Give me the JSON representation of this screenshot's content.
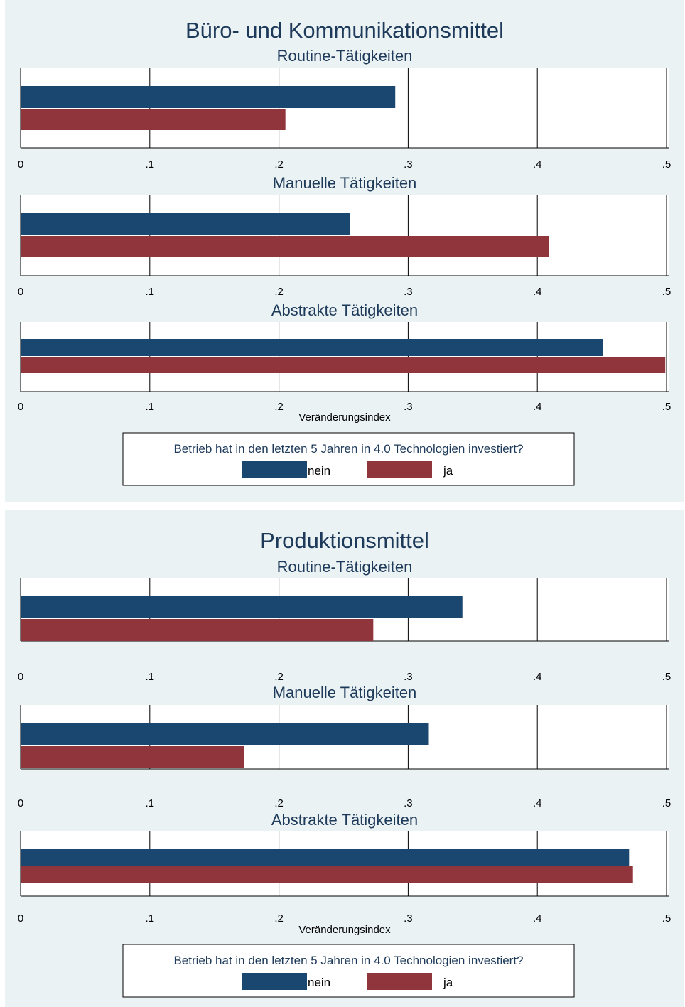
{
  "chart_data": [
    {
      "type": "bar",
      "orientation": "horizontal",
      "title": "Büro- und Kommunikationsmittel",
      "xlabel": "Veränderungsindex",
      "xlim": [
        0,
        0.5
      ],
      "xticks": [
        "0",
        ".1",
        ".2",
        ".3",
        ".4",
        ".5"
      ],
      "xtick_values": [
        0,
        0.1,
        0.2,
        0.3,
        0.4,
        0.5
      ],
      "grid": true,
      "legend": {
        "title": "Betrieb hat in den letzten 5 Jahren in 4.0 Technologien investiert?",
        "entries": [
          "nein",
          "ja"
        ],
        "placement": "bottom"
      },
      "series_colors": [
        "#1a476f",
        "#90353b"
      ],
      "panels": [
        {
          "subtitle": "Routine-Tätigkeiten",
          "series": [
            {
              "name": "nein",
              "value": 0.29
            },
            {
              "name": "ja",
              "value": 0.205
            }
          ]
        },
        {
          "subtitle": "Manuelle Tätigkeiten",
          "series": [
            {
              "name": "nein",
              "value": 0.255
            },
            {
              "name": "ja",
              "value": 0.409
            }
          ]
        },
        {
          "subtitle": "Abstrakte Tätigkeiten",
          "series": [
            {
              "name": "nein",
              "value": 0.451
            },
            {
              "name": "ja",
              "value": 0.499
            }
          ]
        }
      ]
    },
    {
      "type": "bar",
      "orientation": "horizontal",
      "title": "Produktionsmittel",
      "xlabel": "Veränderungsindex",
      "xlim": [
        0,
        0.5
      ],
      "xticks": [
        "0",
        ".1",
        ".2",
        ".3",
        ".4",
        ".5"
      ],
      "xtick_values": [
        0,
        0.1,
        0.2,
        0.3,
        0.4,
        0.5
      ],
      "grid": true,
      "legend": {
        "title": "Betrieb hat in den letzten 5 Jahren in 4.0 Technologien investiert?",
        "entries": [
          "nein",
          "ja"
        ],
        "placement": "bottom"
      },
      "series_colors": [
        "#1a476f",
        "#90353b"
      ],
      "panels": [
        {
          "subtitle": "Routine-Tätigkeiten",
          "series": [
            {
              "name": "nein",
              "value": 0.342
            },
            {
              "name": "ja",
              "value": 0.273
            }
          ]
        },
        {
          "subtitle": "Manuelle Tätigkeiten",
          "series": [
            {
              "name": "nein",
              "value": 0.316
            },
            {
              "name": "ja",
              "value": 0.173
            }
          ]
        },
        {
          "subtitle": "Abstrakte Tätigkeiten",
          "series": [
            {
              "name": "nein",
              "value": 0.471
            },
            {
              "name": "ja",
              "value": 0.474
            }
          ]
        }
      ]
    }
  ]
}
